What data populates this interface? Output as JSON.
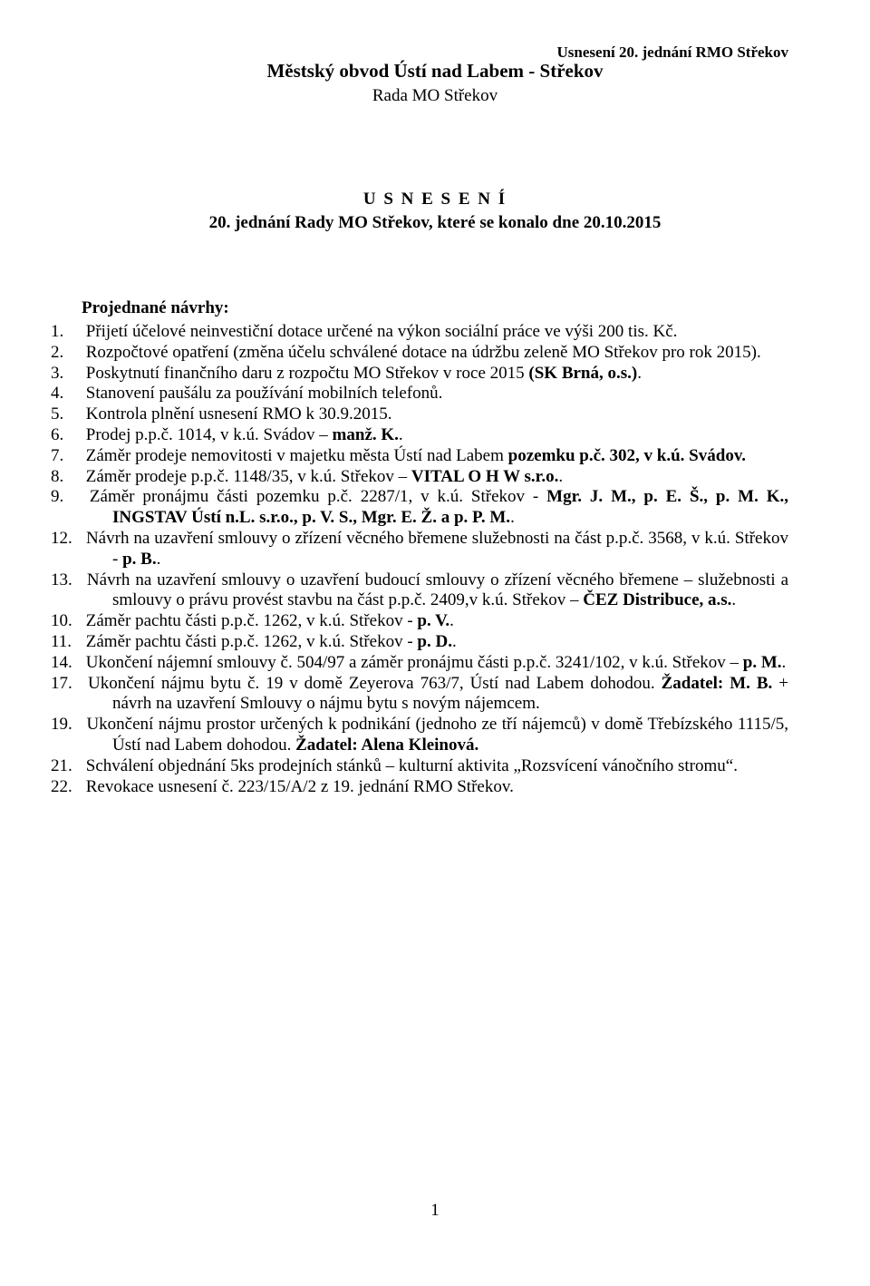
{
  "colors": {
    "page_bg": "#ffffff",
    "text": "#000000"
  },
  "typography": {
    "family": "Times New Roman",
    "header_right_pt": 17,
    "header_center_pt": 21,
    "subhead_center_pt": 19,
    "title_pt": 19,
    "body_pt": 19,
    "line_height": 1.2
  },
  "header": {
    "top_right": "Usnesení 20. jednání RMO Střekov",
    "line1": "Městský obvod Ústí nad Labem - Střekov",
    "line2": "Rada MO Střekov"
  },
  "title": {
    "t1": "U S N E S E N Í",
    "t2": "20. jednání Rady MO Střekov, které se konalo dne 20.10.2015"
  },
  "section_heading": "Projednané návrhy:",
  "items": [
    {
      "n": "1.",
      "html": "Přijetí účelové neinvestiční dotace určené na výkon sociální práce ve výši 200 tis. Kč."
    },
    {
      "n": "2.",
      "html": "Rozpočtové opatření (změna účelu schválené dotace na údržbu zeleně MO Střekov pro rok 2015)."
    },
    {
      "n": "3.",
      "html": "Poskytnutí finančního daru z rozpočtu MO Střekov v roce 2015 <b>(SK Brná, o.s.)</b>."
    },
    {
      "n": "4.",
      "html": "Stanovení paušálu za používání mobilních telefonů."
    },
    {
      "n": "5.",
      "html": "Kontrola plnění usnesení RMO k 30.9.2015."
    },
    {
      "n": "6.",
      "html": "Prodej p.p.č. 1014, v k.ú. Svádov – <b>manž. K.</b>."
    },
    {
      "n": "7.",
      "html": "Záměr prodeje nemovitosti v majetku města Ústí nad Labem <b>pozemku p.č. 302, v k.ú. Svádov.</b>"
    },
    {
      "n": "8.",
      "html": "Záměr prodeje p.p.č. 1148/35, v k.ú. Střekov – <b>VITAL O H W s.r.o.</b>."
    },
    {
      "n": "9.",
      "html": "Záměr pronájmu části pozemku p.č. 2287/1, v k.ú. Střekov - <b>Mgr. J. M., p. E. Š., p. M. K., INGSTAV Ústí n.L. s.r.o., p. V. S., Mgr. E. Ž. a p. P. M.</b>."
    },
    {
      "n": "12.",
      "html": "Návrh na uzavření smlouvy o zřízení věcného břemene služebnosti na část p.p.č. 3568, v&nbsp;k.ú. Střekov - <b>p. B.</b>."
    },
    {
      "n": "13.",
      "html": "Návrh na uzavření smlouvy o uzavření budoucí smlouvy o zřízení věcného břemene – služebnosti a smlouvy o právu provést stavbu na část p.p.č. 2409,v k.ú. Střekov – <b>ČEZ Distribuce, a.s.</b>."
    },
    {
      "n": "10.",
      "html": "Záměr pachtu části p.p.č. 1262, v k.ú. Střekov - <b>p. V.</b>."
    },
    {
      "n": "11.",
      "html": "Záměr pachtu části p.p.č. 1262, v k.ú. Střekov - <b>p. D.</b>."
    },
    {
      "n": "14.",
      "html": "Ukončení nájemní smlouvy č. 504/97 a záměr pronájmu části p.p.č. 3241/102, v k.ú. Střekov –&nbsp;<b>p. M.</b>."
    },
    {
      "n": "17.",
      "html": "Ukončení nájmu bytu č. 19 v domě Zeyerova 763/7, Ústí nad Labem dohodou. <b>Žadatel: M. B.</b> + návrh na uzavření Smlouvy o nájmu bytu s novým nájemcem."
    },
    {
      "n": "19.",
      "html": "Ukončení nájmu prostor určených k podnikání (jednoho ze tří nájemců) v domě Třebízského 1115/5, Ústí nad Labem dohodou. <b>Žadatel: Alena Kleinová.</b>"
    },
    {
      "n": "21.",
      "html": "Schválení objednání 5ks prodejních stánků – kulturní aktivita „Rozsvícení vánočního stromu“."
    },
    {
      "n": "22.",
      "html": "Revokace usnesení č. 223/15/A/2 z 19. jednání RMO Střekov."
    }
  ],
  "page_number": "1"
}
